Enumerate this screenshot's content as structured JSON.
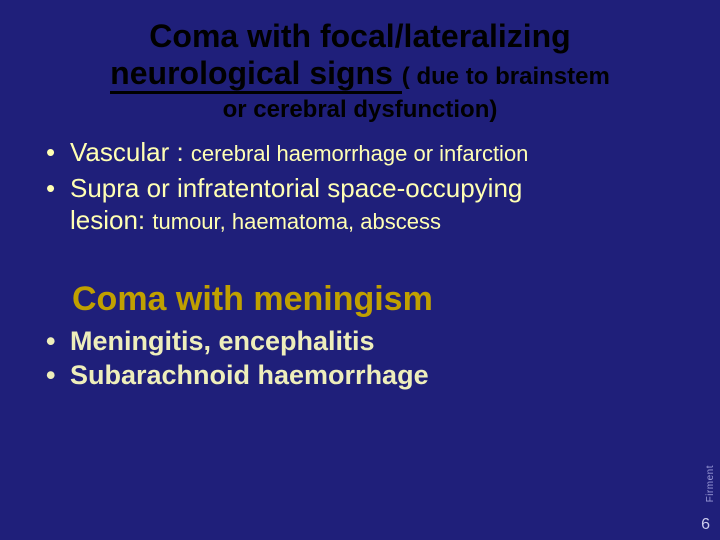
{
  "colors": {
    "background": "#1f1f7a",
    "title_text": "#000000",
    "title_emphasis": "#c00000",
    "bullet_text": "#ffffb3",
    "subtitle_text": "#c0a000",
    "bullet2_text": "#eeeebb",
    "page_number": "#ccccee",
    "vertical_label": "#9a9ad6"
  },
  "typography": {
    "title_fontsize": 32,
    "title_sub_fontsize": 24,
    "bullet_fontsize_large": 26,
    "bullet_fontsize_small": 22,
    "subtitle_fontsize": 34,
    "bullet2_fontsize": 27,
    "page_number_fontsize": 16,
    "vertical_label_fontsize": 10,
    "font_family": "Arial"
  },
  "title": {
    "word_coma": "Coma",
    "word_with": " with ",
    "word_focal": "focal/lateralizing",
    "line2": "neurological signs ",
    "sub1": "( due to brainstem",
    "sub2": "or cerebral dysfunction)"
  },
  "bullets1": {
    "b1_large": "Vascular : ",
    "b1_small": "cerebral haemorrhage or infarction",
    "b2_line1": "Supra or infratentorial space-occupying",
    "b2_line2_large": "lesion: ",
    "b2_line2_small": "tumour, haematoma, abscess"
  },
  "subtitle": "Coma with meningism",
  "bullets2": {
    "b1": "Meningitis, encephalitis",
    "b2": "Subarachnoid haemorrhage"
  },
  "page_number": "6",
  "vertical_label": "Firment"
}
